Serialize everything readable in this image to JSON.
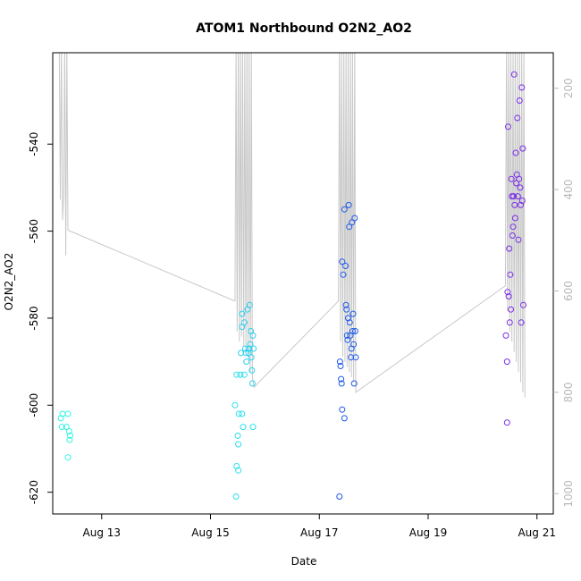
{
  "chart_data": {
    "type": "scatter",
    "title": "ATOM1 Northbound O2N2_AO2",
    "xlabel": "Date",
    "ylabel": "O2N2_AO2",
    "xlim": [
      12.1,
      21.3
    ],
    "ylim": [
      -625,
      -519
    ],
    "y2lim": [
      1040,
      130
    ],
    "x_ticks": [
      {
        "value": 13,
        "label": "Aug 13"
      },
      {
        "value": 15,
        "label": "Aug 15"
      },
      {
        "value": 17,
        "label": "Aug 17"
      },
      {
        "value": 19,
        "label": "Aug 19"
      },
      {
        "value": 21,
        "label": "Aug 21"
      }
    ],
    "y_ticks": [
      {
        "value": -540,
        "label": "-540"
      },
      {
        "value": -560,
        "label": "-560"
      },
      {
        "value": -580,
        "label": "-580"
      },
      {
        "value": -600,
        "label": "-600"
      },
      {
        "value": -620,
        "label": "-620"
      }
    ],
    "y2_ticks": [
      {
        "value": 200,
        "label": "200"
      },
      {
        "value": 400,
        "label": "400"
      },
      {
        "value": 600,
        "label": "600"
      },
      {
        "value": 800,
        "label": "800"
      },
      {
        "value": 1000,
        "label": "1000"
      }
    ],
    "colors": {
      "axis": "#000000",
      "right_axis": "#b8b8b8",
      "depth_line": "#c8c8c8"
    },
    "series": [
      {
        "name": "ATOM1 Northbound O2N2_AO2",
        "points": [
          {
            "x": 12.25,
            "y": -603,
            "color": "#33f5e0"
          },
          {
            "x": 12.28,
            "y": -602,
            "color": "#33f5e0"
          },
          {
            "x": 12.27,
            "y": -605,
            "color": "#33f5e0"
          },
          {
            "x": 12.35,
            "y": -605,
            "color": "#33f5e0"
          },
          {
            "x": 12.38,
            "y": -602,
            "color": "#33f5e0"
          },
          {
            "x": 12.4,
            "y": -606,
            "color": "#33f5e0"
          },
          {
            "x": 12.41,
            "y": -608,
            "color": "#33f5e0"
          },
          {
            "x": 12.42,
            "y": -607,
            "color": "#33f5e0"
          },
          {
            "x": 12.38,
            "y": -612,
            "color": "#33f5e0"
          },
          {
            "x": 15.45,
            "y": -600,
            "color": "#2ee0ee"
          },
          {
            "x": 15.48,
            "y": -593,
            "color": "#2ee0ee"
          },
          {
            "x": 15.52,
            "y": -602,
            "color": "#2ee0ee"
          },
          {
            "x": 15.5,
            "y": -607,
            "color": "#2ee0ee"
          },
          {
            "x": 15.51,
            "y": -609,
            "color": "#2ee0ee"
          },
          {
            "x": 15.48,
            "y": -614,
            "color": "#2ee0ee"
          },
          {
            "x": 15.51,
            "y": -615,
            "color": "#2ee0ee"
          },
          {
            "x": 15.47,
            "y": -621,
            "color": "#2ee0ee"
          },
          {
            "x": 15.58,
            "y": -602,
            "color": "#2ee0ee"
          },
          {
            "x": 15.6,
            "y": -605,
            "color": "#2ee0ee"
          },
          {
            "x": 15.55,
            "y": -593,
            "color": "#2ee0ee"
          },
          {
            "x": 15.62,
            "y": -593,
            "color": "#2ee0ee"
          },
          {
            "x": 15.78,
            "y": -605,
            "color": "#2ee0ee"
          },
          {
            "x": 15.56,
            "y": -588,
            "color": "#2bd0f0"
          },
          {
            "x": 15.58,
            "y": -582,
            "color": "#2bd0f0"
          },
          {
            "x": 15.58,
            "y": -579,
            "color": "#2bd0f0"
          },
          {
            "x": 15.62,
            "y": -581,
            "color": "#2bd0f0"
          },
          {
            "x": 15.64,
            "y": -587,
            "color": "#2bd0f0"
          },
          {
            "x": 15.65,
            "y": -588,
            "color": "#2bd0f0"
          },
          {
            "x": 15.66,
            "y": -590,
            "color": "#2bd0f0"
          },
          {
            "x": 15.68,
            "y": -578,
            "color": "#2bd0f0"
          },
          {
            "x": 15.7,
            "y": -588,
            "color": "#2bd0f0"
          },
          {
            "x": 15.71,
            "y": -587,
            "color": "#2bd0f0"
          },
          {
            "x": 15.72,
            "y": -577,
            "color": "#2bd0f0"
          },
          {
            "x": 15.73,
            "y": -586,
            "color": "#2bd0f0"
          },
          {
            "x": 15.74,
            "y": -583,
            "color": "#2bd0f0"
          },
          {
            "x": 15.75,
            "y": -589,
            "color": "#2bd0f0"
          },
          {
            "x": 15.76,
            "y": -592,
            "color": "#2bd0f0"
          },
          {
            "x": 15.77,
            "y": -595,
            "color": "#2bd0f0"
          },
          {
            "x": 15.78,
            "y": -584,
            "color": "#2bd0f0"
          },
          {
            "x": 15.79,
            "y": -587,
            "color": "#2bd0f0"
          },
          {
            "x": 17.37,
            "y": -621,
            "color": "#1f5ae8"
          },
          {
            "x": 17.42,
            "y": -601,
            "color": "#1f5ae8"
          },
          {
            "x": 17.46,
            "y": -603,
            "color": "#1f5ae8"
          },
          {
            "x": 17.39,
            "y": -591,
            "color": "#1f5ae8"
          },
          {
            "x": 17.38,
            "y": -590,
            "color": "#1f5ae8"
          },
          {
            "x": 17.4,
            "y": -594,
            "color": "#1f5ae8"
          },
          {
            "x": 17.41,
            "y": -595,
            "color": "#1f5ae8"
          },
          {
            "x": 17.42,
            "y": -567,
            "color": "#1f5ae8"
          },
          {
            "x": 17.44,
            "y": -570,
            "color": "#1f5ae8"
          },
          {
            "x": 17.46,
            "y": -555,
            "color": "#1f5ae8"
          },
          {
            "x": 17.48,
            "y": -568,
            "color": "#1f5ae8"
          },
          {
            "x": 17.49,
            "y": -577,
            "color": "#1f5ae8"
          },
          {
            "x": 17.5,
            "y": -578,
            "color": "#1f5ae8"
          },
          {
            "x": 17.51,
            "y": -584,
            "color": "#1f5ae8"
          },
          {
            "x": 17.52,
            "y": -585,
            "color": "#1f5ae8"
          },
          {
            "x": 17.53,
            "y": -580,
            "color": "#1f5ae8"
          },
          {
            "x": 17.54,
            "y": -554,
            "color": "#1f5ae8"
          },
          {
            "x": 17.55,
            "y": -559,
            "color": "#1f5ae8"
          },
          {
            "x": 17.56,
            "y": -581,
            "color": "#1f5ae8"
          },
          {
            "x": 17.57,
            "y": -584,
            "color": "#1f5ae8"
          },
          {
            "x": 17.58,
            "y": -589,
            "color": "#1f5ae8"
          },
          {
            "x": 17.59,
            "y": -587,
            "color": "#1f5ae8"
          },
          {
            "x": 17.6,
            "y": -558,
            "color": "#1f5ae8"
          },
          {
            "x": 17.61,
            "y": -583,
            "color": "#1f5ae8"
          },
          {
            "x": 17.62,
            "y": -579,
            "color": "#1f5ae8"
          },
          {
            "x": 17.63,
            "y": -586,
            "color": "#1f5ae8"
          },
          {
            "x": 17.64,
            "y": -595,
            "color": "#1f5ae8"
          },
          {
            "x": 17.65,
            "y": -557,
            "color": "#1f5ae8"
          },
          {
            "x": 17.66,
            "y": -583,
            "color": "#1f5ae8"
          },
          {
            "x": 17.67,
            "y": -589,
            "color": "#1f5ae8"
          },
          {
            "x": 20.43,
            "y": -584,
            "color": "#7a2ee8"
          },
          {
            "x": 20.45,
            "y": -590,
            "color": "#7a2ee8"
          },
          {
            "x": 20.46,
            "y": -574,
            "color": "#7a2ee8"
          },
          {
            "x": 20.47,
            "y": -536,
            "color": "#7a2ee8"
          },
          {
            "x": 20.48,
            "y": -575,
            "color": "#7a2ee8"
          },
          {
            "x": 20.49,
            "y": -564,
            "color": "#7a2ee8"
          },
          {
            "x": 20.5,
            "y": -581,
            "color": "#7a2ee8"
          },
          {
            "x": 20.51,
            "y": -570,
            "color": "#7a2ee8"
          },
          {
            "x": 20.52,
            "y": -578,
            "color": "#7a2ee8"
          },
          {
            "x": 20.53,
            "y": -548,
            "color": "#7a2ee8"
          },
          {
            "x": 20.54,
            "y": -552,
            "color": "#7a2ee8"
          },
          {
            "x": 20.55,
            "y": -561,
            "color": "#7a2ee8"
          },
          {
            "x": 20.56,
            "y": -559,
            "color": "#7a2ee8"
          },
          {
            "x": 20.57,
            "y": -552,
            "color": "#7a2ee8"
          },
          {
            "x": 20.58,
            "y": -524,
            "color": "#7a2ee8"
          },
          {
            "x": 20.59,
            "y": -554,
            "color": "#7a2ee8"
          },
          {
            "x": 20.6,
            "y": -557,
            "color": "#7a2ee8"
          },
          {
            "x": 20.61,
            "y": -542,
            "color": "#7a2ee8"
          },
          {
            "x": 20.62,
            "y": -549,
            "color": "#7a2ee8"
          },
          {
            "x": 20.63,
            "y": -547,
            "color": "#7a2ee8"
          },
          {
            "x": 20.64,
            "y": -534,
            "color": "#7a2ee8"
          },
          {
            "x": 20.65,
            "y": -552,
            "color": "#7a2ee8"
          },
          {
            "x": 20.66,
            "y": -562,
            "color": "#7a2ee8"
          },
          {
            "x": 20.67,
            "y": -548,
            "color": "#7a2ee8"
          },
          {
            "x": 20.68,
            "y": -530,
            "color": "#7a2ee8"
          },
          {
            "x": 20.69,
            "y": -550,
            "color": "#7a2ee8"
          },
          {
            "x": 20.7,
            "y": -554,
            "color": "#7a2ee8"
          },
          {
            "x": 20.71,
            "y": -581,
            "color": "#7a2ee8"
          },
          {
            "x": 20.72,
            "y": -527,
            "color": "#7a2ee8"
          },
          {
            "x": 20.73,
            "y": -553,
            "color": "#7a2ee8"
          },
          {
            "x": 20.74,
            "y": -541,
            "color": "#7a2ee8"
          },
          {
            "x": 20.75,
            "y": -577,
            "color": "#7a2ee8"
          },
          {
            "x": 20.45,
            "y": -604,
            "color": "#7a2ee8"
          }
        ]
      }
    ],
    "depth_line": [
      [
        12.22,
        115
      ],
      [
        12.24,
        420
      ],
      [
        12.26,
        115
      ],
      [
        12.28,
        460
      ],
      [
        12.3,
        410
      ],
      [
        12.32,
        115
      ],
      [
        12.34,
        530
      ],
      [
        12.36,
        115
      ],
      [
        12.38,
        480
      ],
      [
        15.45,
        620
      ],
      [
        15.47,
        115
      ],
      [
        15.49,
        680
      ],
      [
        15.51,
        115
      ],
      [
        15.53,
        700
      ],
      [
        15.55,
        115
      ],
      [
        15.57,
        690
      ],
      [
        15.59,
        115
      ],
      [
        15.61,
        710
      ],
      [
        15.63,
        115
      ],
      [
        15.65,
        720
      ],
      [
        15.67,
        115
      ],
      [
        15.69,
        730
      ],
      [
        15.71,
        115
      ],
      [
        15.73,
        760
      ],
      [
        15.75,
        115
      ],
      [
        15.77,
        770
      ],
      [
        15.8,
        790
      ],
      [
        17.35,
        620
      ],
      [
        17.37,
        115
      ],
      [
        17.39,
        700
      ],
      [
        17.41,
        115
      ],
      [
        17.43,
        730
      ],
      [
        17.45,
        115
      ],
      [
        17.47,
        740
      ],
      [
        17.49,
        115
      ],
      [
        17.51,
        750
      ],
      [
        17.53,
        115
      ],
      [
        17.55,
        760
      ],
      [
        17.57,
        115
      ],
      [
        17.59,
        770
      ],
      [
        17.61,
        115
      ],
      [
        17.63,
        780
      ],
      [
        17.65,
        115
      ],
      [
        17.67,
        800
      ],
      [
        20.42,
        590
      ],
      [
        20.44,
        115
      ],
      [
        20.46,
        640
      ],
      [
        20.48,
        115
      ],
      [
        20.5,
        680
      ],
      [
        20.52,
        115
      ],
      [
        20.54,
        700
      ],
      [
        20.56,
        115
      ],
      [
        20.58,
        720
      ],
      [
        20.6,
        115
      ],
      [
        20.62,
        740
      ],
      [
        20.64,
        115
      ],
      [
        20.66,
        760
      ],
      [
        20.68,
        115
      ],
      [
        20.7,
        780
      ],
      [
        20.72,
        115
      ],
      [
        20.74,
        800
      ],
      [
        20.76,
        115
      ],
      [
        20.78,
        810
      ]
    ]
  }
}
